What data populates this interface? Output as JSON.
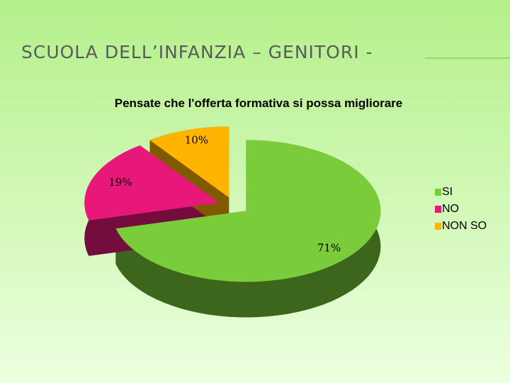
{
  "header": {
    "title": "SCUOLA DELL’INFANZIA – GENITORI -"
  },
  "chart_data": {
    "type": "pie",
    "title": "Pensate che l'offerta formativa si possa migliorare",
    "categories": [
      "SI",
      "NO",
      "NON SO"
    ],
    "values": [
      71,
      19,
      10
    ],
    "value_labels": [
      "71%",
      "19%",
      "10%"
    ],
    "colors": [
      "#7acc3a",
      "#e8177a",
      "#ffb400"
    ],
    "legend": "right"
  }
}
